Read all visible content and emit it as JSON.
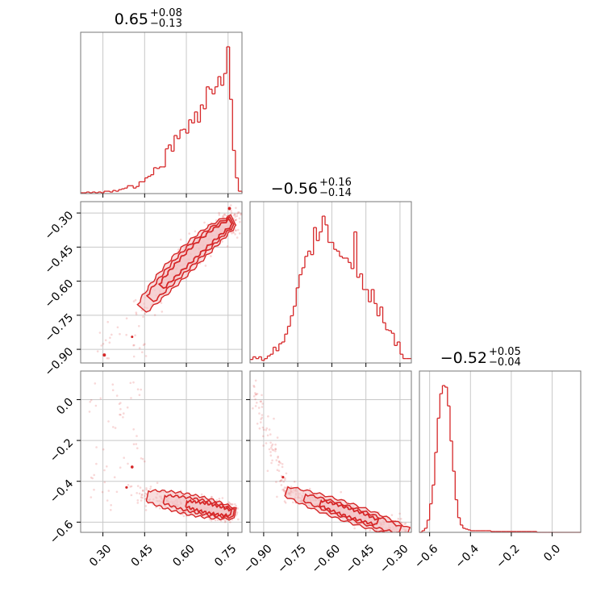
{
  "chart_data": {
    "type": "corner",
    "color": "#d62728",
    "fill_color": "#f4c6c8",
    "grid": true,
    "params": [
      {
        "range": [
          0.22,
          0.8
        ],
        "ticks": [
          0.3,
          0.45,
          0.6,
          0.75
        ],
        "tick_labels": [
          "0.30",
          "0.45",
          "0.60",
          "0.75"
        ]
      },
      {
        "range": [
          -0.96,
          -0.25
        ],
        "ticks": [
          -0.9,
          -0.75,
          -0.6,
          -0.45,
          -0.3
        ],
        "tick_labels": [
          "−0.90",
          "−0.75",
          "−0.60",
          "−0.45",
          "−0.30"
        ]
      },
      {
        "range": [
          -0.65,
          0.14
        ],
        "ticks": [
          -0.6,
          -0.4,
          -0.2,
          0.0
        ],
        "tick_labels": [
          "−0.6",
          "−0.4",
          "−0.2",
          "0.0"
        ]
      }
    ],
    "titles": [
      {
        "value": "0.65",
        "plus": "+0.08",
        "minus": "−0.13"
      },
      {
        "value": "−0.56",
        "plus": "+0.16",
        "minus": "−0.14"
      },
      {
        "value": "−0.52",
        "plus": "+0.05",
        "minus": "−0.04"
      }
    ],
    "histograms": [
      {
        "bin_edges": [
          0.22,
          0.2305,
          0.241,
          0.2515,
          0.262,
          0.2725,
          0.283,
          0.2935,
          0.304,
          0.3145,
          0.325,
          0.3355,
          0.346,
          0.3565,
          0.367,
          0.3775,
          0.388,
          0.3985,
          0.409,
          0.4195,
          0.43,
          0.4405,
          0.451,
          0.4615,
          0.472,
          0.4825,
          0.493,
          0.5035,
          0.514,
          0.5245,
          0.535,
          0.5455,
          0.556,
          0.5665,
          0.577,
          0.5875,
          0.598,
          0.6085,
          0.619,
          0.6295,
          0.64,
          0.6505,
          0.661,
          0.6715,
          0.682,
          0.6925,
          0.703,
          0.7135,
          0.724,
          0.7345,
          0.745,
          0.7555,
          0.766,
          0.7765,
          0.787,
          0.8
        ],
        "counts": [
          1,
          1,
          2,
          1,
          2,
          1,
          2,
          1,
          3,
          3,
          2,
          4,
          3,
          5,
          6,
          7,
          10,
          10,
          7,
          9,
          15,
          15,
          20,
          22,
          24,
          33,
          32,
          34,
          34,
          57,
          62,
          54,
          74,
          70,
          81,
          82,
          77,
          94,
          90,
          104,
          91,
          113,
          108,
          136,
          133,
          127,
          136,
          149,
          138,
          153,
          187,
          120,
          55,
          20,
          3,
          1
        ]
      },
      {
        "bin_edges": [
          -0.96,
          -0.9473,
          -0.9346,
          -0.9219,
          -0.9092,
          -0.8965,
          -0.8838,
          -0.8711,
          -0.8584,
          -0.8457,
          -0.833,
          -0.8203,
          -0.8076,
          -0.7949,
          -0.7822,
          -0.7695,
          -0.7568,
          -0.7441,
          -0.7314,
          -0.7187,
          -0.706,
          -0.6933,
          -0.6806,
          -0.6679,
          -0.6552,
          -0.6425,
          -0.6298,
          -0.6171,
          -0.6044,
          -0.5917,
          -0.579,
          -0.5663,
          -0.5536,
          -0.5409,
          -0.5282,
          -0.5155,
          -0.5028,
          -0.4901,
          -0.4774,
          -0.4647,
          -0.452,
          -0.4393,
          -0.4266,
          -0.4139,
          -0.4012,
          -0.3885,
          -0.3758,
          -0.3631,
          -0.3504,
          -0.3377,
          -0.325,
          -0.3123,
          -0.2996,
          -0.2869,
          -0.274,
          -0.25
        ],
        "counts": [
          4,
          7,
          5,
          7,
          3,
          5,
          8,
          10,
          18,
          14,
          22,
          24,
          33,
          42,
          54,
          65,
          86,
          101,
          109,
          122,
          128,
          124,
          155,
          140,
          150,
          168,
          158,
          138,
          138,
          130,
          128,
          122,
          120,
          120,
          115,
          108,
          150,
          98,
          102,
          84,
          84,
          70,
          84,
          68,
          54,
          64,
          46,
          38,
          37,
          34,
          20,
          24,
          10,
          5,
          5
        ]
      },
      {
        "bin_edges": [
          -0.65,
          -0.6375,
          -0.625,
          -0.6125,
          -0.6,
          -0.5875,
          -0.575,
          -0.5625,
          -0.55,
          -0.5375,
          -0.525,
          -0.5125,
          -0.5,
          -0.4875,
          -0.475,
          -0.4625,
          -0.45,
          -0.4375,
          -0.425,
          -0.4125,
          -0.4,
          -0.375,
          -0.35,
          -0.325,
          -0.3,
          -0.275,
          -0.25,
          -0.225,
          -0.2,
          -0.175,
          -0.15,
          -0.125,
          -0.1,
          -0.075,
          -0.05,
          -0.025,
          0.0,
          0.14
        ],
        "counts": [
          0,
          2,
          5,
          15,
          35,
          58,
          98,
          140,
          170,
          180,
          178,
          155,
          112,
          75,
          40,
          18,
          9,
          5,
          4,
          3,
          2,
          2,
          2,
          2,
          1,
          1,
          1,
          1,
          1,
          1,
          1,
          1,
          1,
          0,
          0,
          0,
          0
        ]
      }
    ]
  }
}
